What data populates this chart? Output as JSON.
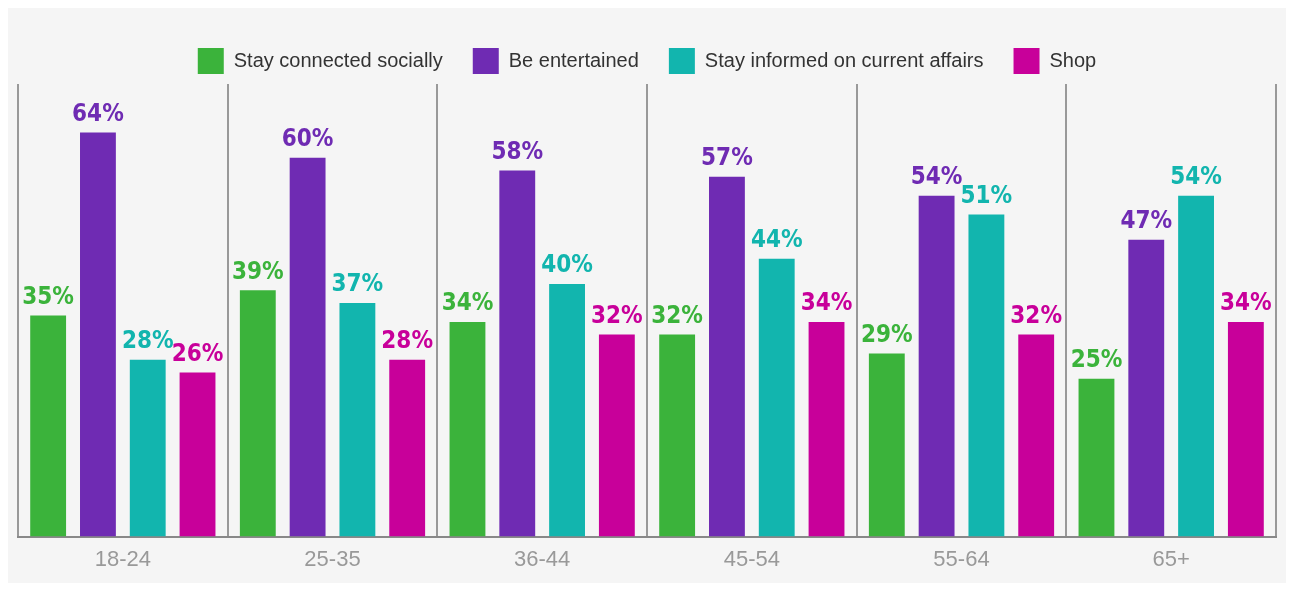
{
  "chart_data": {
    "type": "bar",
    "categories": [
      "18-24",
      "25-35",
      "36-44",
      "45-54",
      "55-64",
      "65+"
    ],
    "series": [
      {
        "name": "Stay connected socially",
        "color": "#3bb33b",
        "values": [
          35,
          39,
          34,
          32,
          29,
          25
        ],
        "value_labels": [
          "35%",
          "39%",
          "34%",
          "32%",
          "29%",
          "25%"
        ]
      },
      {
        "name": "Be entertained",
        "color": "#6f2bb3",
        "values": [
          64,
          60,
          58,
          57,
          54,
          47
        ],
        "value_labels": [
          "64%",
          "60%",
          "58%",
          "57%",
          "54%",
          "47%"
        ]
      },
      {
        "name": "Stay informed on current affairs",
        "color": "#12b5ae",
        "values": [
          28,
          37,
          40,
          44,
          51,
          54
        ],
        "value_labels": [
          "28%",
          "37%",
          "40%",
          "44%",
          "51%",
          "54%"
        ]
      },
      {
        "name": "Shop",
        "color": "#c8009a",
        "values": [
          26,
          28,
          32,
          34,
          32,
          34
        ],
        "value_labels": [
          "26%",
          "28%",
          "32%",
          "34%",
          "32%",
          "34%"
        ]
      }
    ],
    "legend": "top",
    "grid": "x"
  }
}
